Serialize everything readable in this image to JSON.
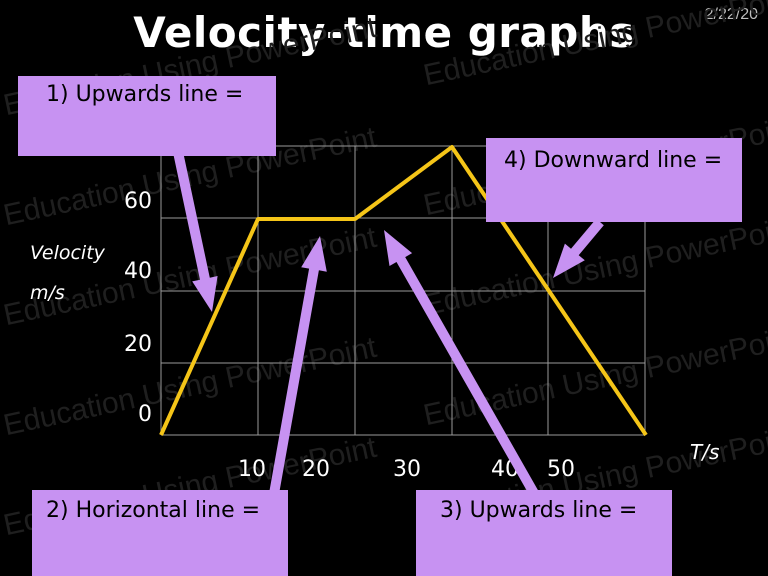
{
  "slide": {
    "title": "Velocity-time graphs",
    "date": "2/22/20",
    "watermark": "Education Using PowerPoint"
  },
  "boxes": {
    "box1": "1) Upwards line =",
    "box2": "2) Horizontal line =",
    "box3": "3) Upwards line =",
    "box4": "4) Downward line ="
  },
  "colors": {
    "background": "#000000",
    "line": "#f5c518",
    "grid": "#9a9a9a",
    "box": "#c792f2"
  },
  "chart_data": {
    "type": "line",
    "title": "Velocity-time graphs",
    "ylabel_line1": "Velocity",
    "ylabel_line2": "m/s",
    "xlabel": "T/s",
    "x_tick_labels": [
      "10",
      "20",
      "30",
      "40",
      "50"
    ],
    "y_tick_labels": [
      "0",
      "20",
      "40",
      "60"
    ],
    "grid": true,
    "series": [
      {
        "x": [
          0,
          10,
          20,
          30,
          50
        ],
        "y": [
          0,
          60,
          60,
          80,
          0
        ]
      }
    ]
  }
}
